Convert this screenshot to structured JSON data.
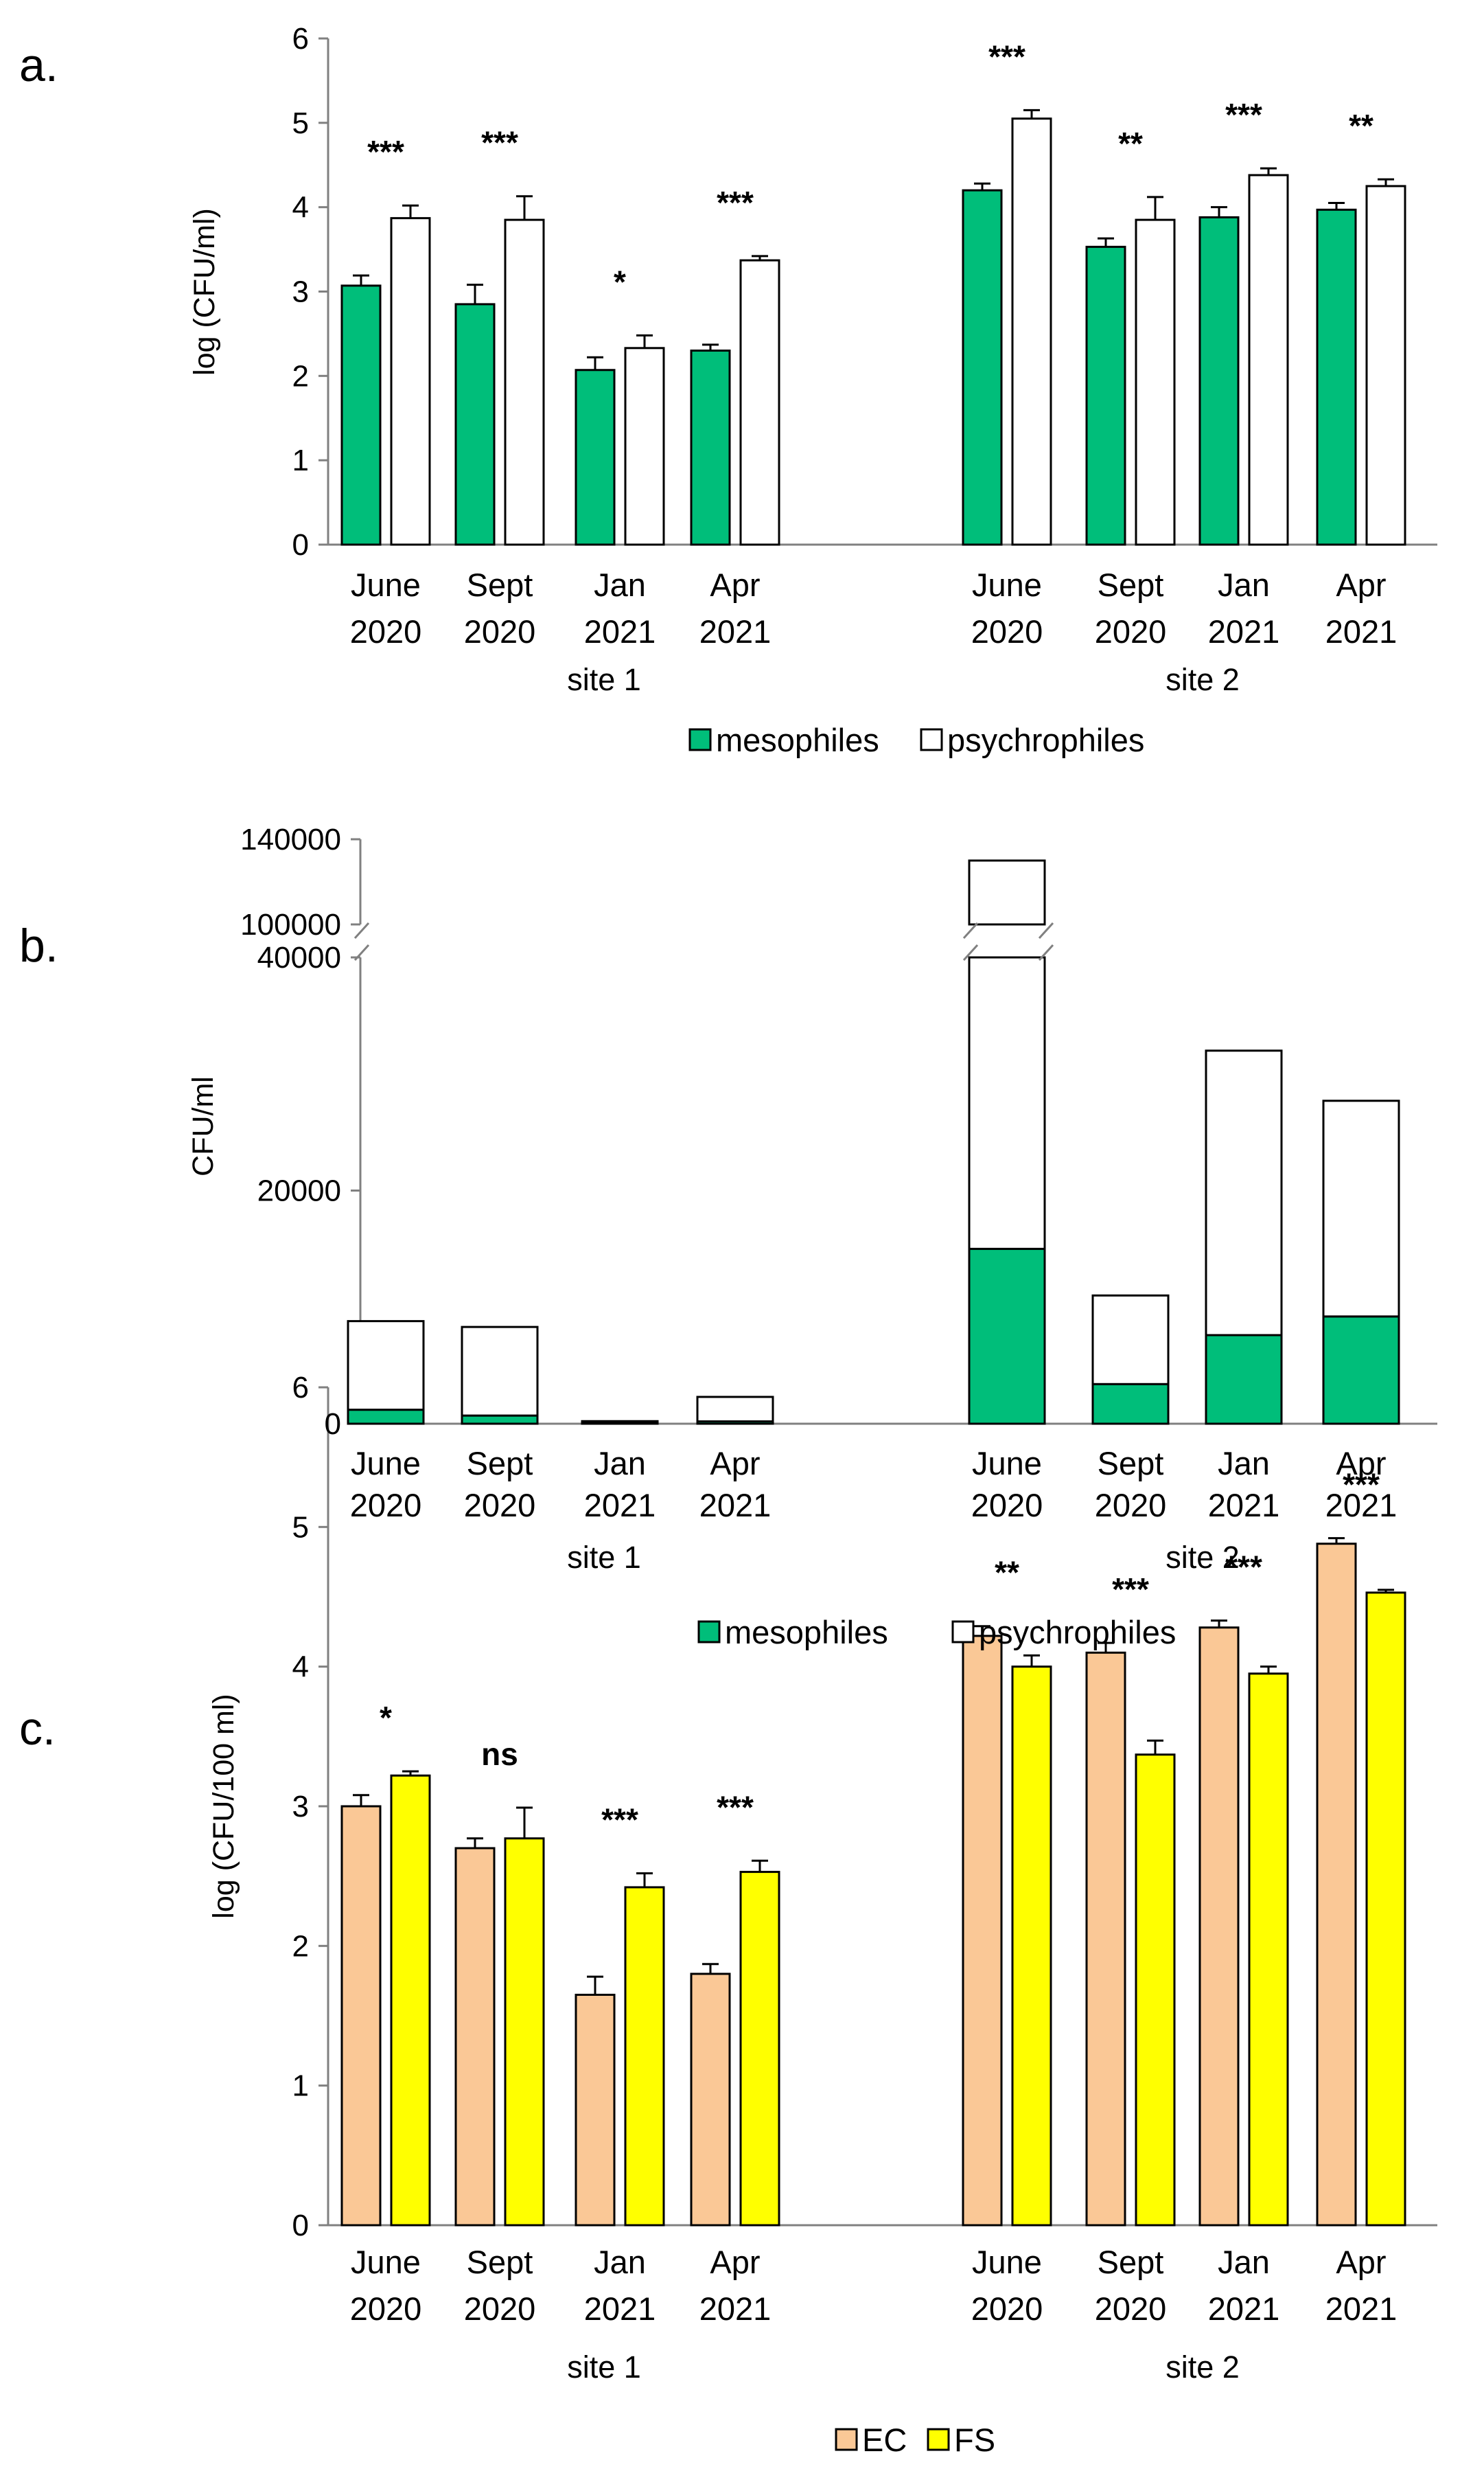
{
  "colors": {
    "mesophiles": "#00BE7A",
    "psychrophiles": "#FFFFFF",
    "EC": "#FAC896",
    "FS": "#FFFF00",
    "outline": "#000000",
    "axis": "#808080"
  },
  "chart_data": [
    {
      "id": "a",
      "panel_label": "a.",
      "type": "bar",
      "ylabel": "log (CFU/ml)",
      "ylim": [
        0,
        6
      ],
      "yticks": [
        "0",
        "1",
        "2",
        "3",
        "4",
        "5",
        "6"
      ],
      "categories": [
        {
          "month": "June",
          "year": "2020"
        },
        {
          "month": "Sept",
          "year": "2020"
        },
        {
          "month": "Jan",
          "year": "2021"
        },
        {
          "month": "Apr",
          "year": "2021"
        },
        {
          "month": "June",
          "year": "2020"
        },
        {
          "month": "Sept",
          "year": "2020"
        },
        {
          "month": "Jan",
          "year": "2021"
        },
        {
          "month": "Apr",
          "year": "2021"
        }
      ],
      "groups": [
        "site 1",
        "site 2"
      ],
      "series": [
        {
          "name": "mesophiles",
          "values": [
            3.07,
            2.85,
            2.07,
            2.3,
            4.2,
            3.53,
            3.88,
            3.97
          ],
          "errors": [
            0.12,
            0.23,
            0.15,
            0.07,
            0.08,
            0.1,
            0.12,
            0.08
          ]
        },
        {
          "name": "psychrophiles",
          "values": [
            3.87,
            3.85,
            2.33,
            3.37,
            5.05,
            3.85,
            4.38,
            4.25
          ],
          "errors": [
            0.15,
            0.28,
            0.15,
            0.05,
            0.1,
            0.27,
            0.08,
            0.08
          ]
        }
      ],
      "significance": [
        "***",
        "***",
        "*",
        "***",
        "***",
        "**",
        "***",
        "**"
      ],
      "legend": [
        "mesophiles",
        "psychrophiles"
      ]
    },
    {
      "id": "b",
      "panel_label": "b.",
      "type": "bar",
      "stacked": true,
      "ylabel": "CFU/ml",
      "ylim": [
        0,
        140000
      ],
      "axis_break": [
        40000,
        100000
      ],
      "yticks": [
        "0",
        "20000",
        "40000",
        "100000",
        "140000"
      ],
      "categories": [
        {
          "month": "June",
          "year": "2020"
        },
        {
          "month": "Sept",
          "year": "2020"
        },
        {
          "month": "Jan",
          "year": "2021"
        },
        {
          "month": "Apr",
          "year": "2021"
        },
        {
          "month": "June",
          "year": "2020"
        },
        {
          "month": "Sept",
          "year": "2020"
        },
        {
          "month": "Jan",
          "year": "2021"
        },
        {
          "month": "Apr",
          "year": "2021"
        }
      ],
      "groups": [
        "site 1",
        "site 2"
      ],
      "series": [
        {
          "name": "mesophiles",
          "values": [
            1200,
            700,
            120,
            200,
            15000,
            3400,
            7600,
            9200
          ]
        },
        {
          "name": "psychrophiles",
          "values": [
            7600,
            7600,
            100,
            2100,
            115000,
            7600,
            24400,
            18500
          ]
        }
      ],
      "legend": [
        "mesophiles",
        "psychrophiles"
      ]
    },
    {
      "id": "c",
      "panel_label": "c.",
      "type": "bar",
      "ylabel": "log (CFU/100  ml)",
      "ylim": [
        0,
        6
      ],
      "yticks": [
        "0",
        "1",
        "2",
        "3",
        "4",
        "5",
        "6"
      ],
      "categories": [
        {
          "month": "June",
          "year": "2020"
        },
        {
          "month": "Sept",
          "year": "2020"
        },
        {
          "month": "Jan",
          "year": "2021"
        },
        {
          "month": "Apr",
          "year": "2021"
        },
        {
          "month": "June",
          "year": "2020"
        },
        {
          "month": "Sept",
          "year": "2020"
        },
        {
          "month": "Jan",
          "year": "2021"
        },
        {
          "month": "Apr",
          "year": "2021"
        }
      ],
      "groups": [
        "site 1",
        "site 2"
      ],
      "series": [
        {
          "name": "EC",
          "values": [
            3.0,
            2.7,
            1.65,
            1.8,
            4.22,
            4.1,
            4.28,
            4.88
          ],
          "errors": [
            0.08,
            0.07,
            0.13,
            0.07,
            0.07,
            0.07,
            0.05,
            0.04
          ]
        },
        {
          "name": "FS",
          "values": [
            3.22,
            2.77,
            2.42,
            2.53,
            4.0,
            3.37,
            3.95,
            4.53
          ],
          "errors": [
            0.03,
            0.22,
            0.1,
            0.08,
            0.08,
            0.1,
            0.05,
            0.02
          ]
        }
      ],
      "significance": [
        "*",
        "ns",
        "***",
        "***",
        "**",
        "***",
        "***",
        "***"
      ],
      "legend": [
        "EC",
        "FS"
      ]
    }
  ]
}
